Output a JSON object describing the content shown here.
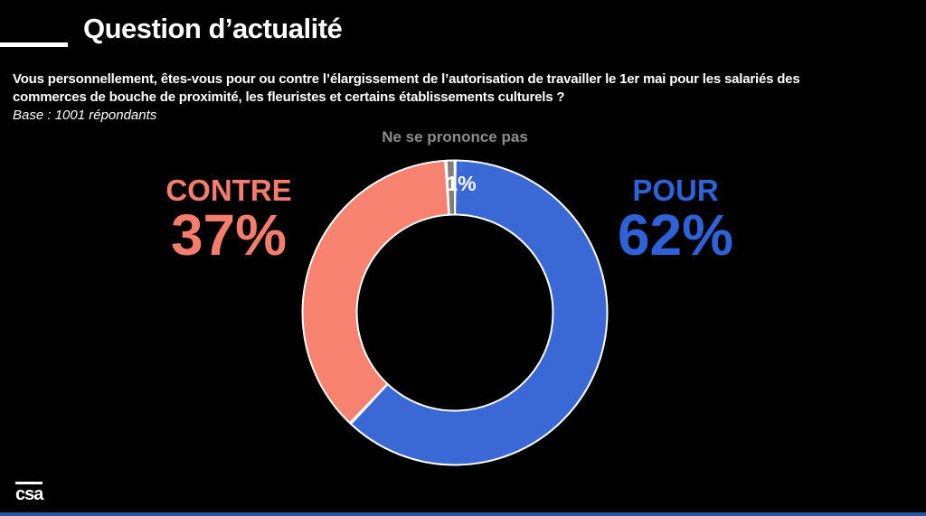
{
  "slide": {
    "title": "Question d’actualité",
    "question_line1": "Vous personnellement, êtes-vous pour ou contre l’élargissement de l’autorisation de travailler le 1er mai pour les salariés des",
    "question_line2": "commerces de bouche de proximité, les fleuristes et certains établissements culturels ?",
    "base": "Base : 1001 répondants",
    "logo_text": "csa"
  },
  "chart_data": {
    "type": "pie",
    "subtype": "donut",
    "title": "Question d’actualité",
    "question": "Vous personnellement, êtes-vous pour ou contre l’élargissement de l’autorisation de travailler le 1er mai pour les salariés des commerces de bouche de proximité, les fleuristes et certains établissements culturels ?",
    "base_note": "Base : 1001 répondants",
    "start_angle_deg": 0,
    "direction": "clockwise",
    "inner_radius_ratio": 0.64,
    "legend_position": "none",
    "separator_color": "#ffffff",
    "segments": [
      {
        "label": "POUR",
        "value": 62,
        "value_label": "62%",
        "color": "#3A69D6",
        "text_color": "#2F62D6"
      },
      {
        "label": "CONTRE",
        "value": 37,
        "value_label": "37%",
        "color": "#F7826F",
        "text_color": "#F47D6E"
      },
      {
        "label": "Ne se prononce pas",
        "value": 1,
        "value_label": "1%",
        "color": "#7F7F7F",
        "text_color": "#8C8C8C"
      }
    ]
  },
  "colors": {
    "background": "#000000",
    "text": "#FFFFFF",
    "bottom_bar": "#2E55A3"
  }
}
